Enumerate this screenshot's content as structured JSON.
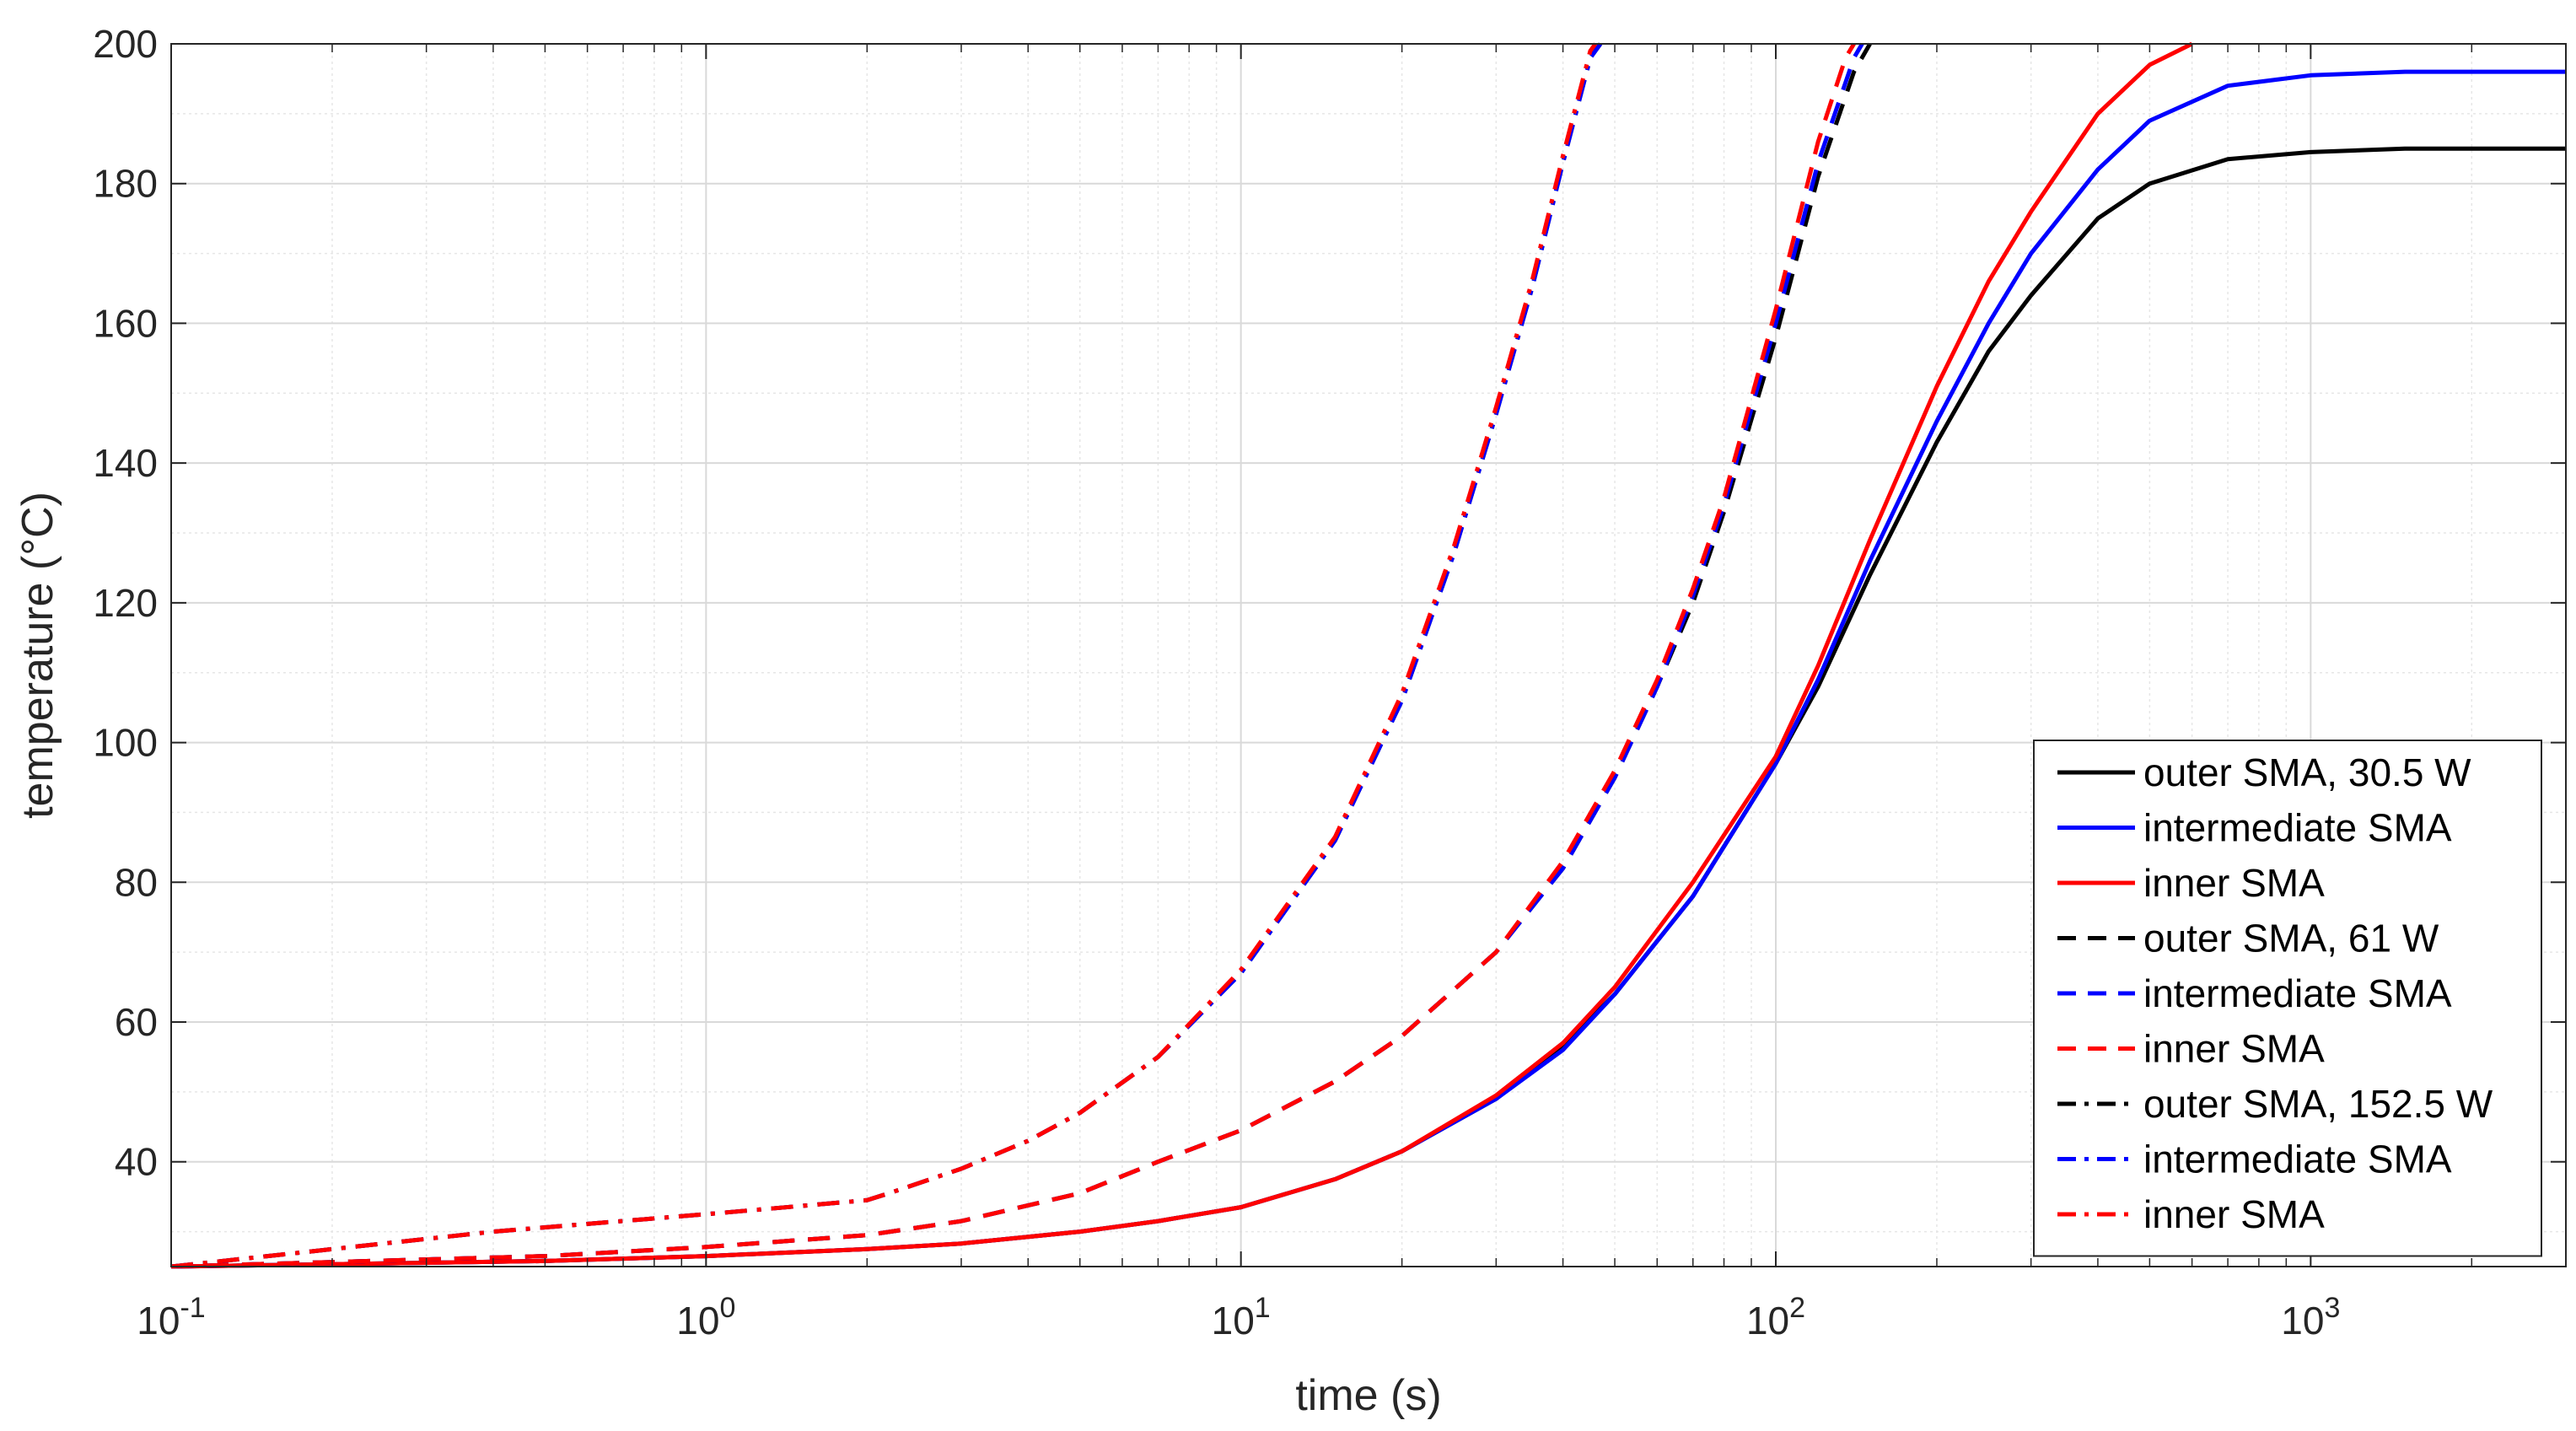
{
  "chart_data": {
    "type": "line",
    "title": "",
    "xlabel": "time (s)",
    "ylabel": "temperature (°C)",
    "xscale": "log",
    "xlim": [
      0.1,
      3000
    ],
    "ylim": [
      25,
      200
    ],
    "grid": true,
    "minor_grid": true,
    "legend_position": "bottom-right",
    "x_ticks": [
      {
        "value": 0.1,
        "base": "10",
        "exp": "-1"
      },
      {
        "value": 1,
        "base": "10",
        "exp": "0"
      },
      {
        "value": 10,
        "base": "10",
        "exp": "1"
      },
      {
        "value": 100,
        "base": "10",
        "exp": "2"
      },
      {
        "value": 1000,
        "base": "10",
        "exp": "3"
      }
    ],
    "y_ticks": [
      40,
      60,
      80,
      100,
      120,
      140,
      160,
      180,
      200
    ],
    "colors": {
      "outer": "#000000",
      "intermediate": "#0000ff",
      "inner": "#ff0000"
    },
    "series": [
      {
        "name": "outer SMA, 30.5 W",
        "color": "#000000",
        "style": "solid",
        "x": [
          0.1,
          0.5,
          1,
          2,
          3,
          5,
          7,
          10,
          15,
          20,
          30,
          40,
          50,
          70,
          100,
          120,
          150,
          200,
          250,
          300,
          400,
          500,
          700,
          1000,
          1500,
          2000,
          3000
        ],
        "y": [
          25,
          25.8,
          26.5,
          27.5,
          28.3,
          30,
          31.5,
          33.5,
          37.5,
          41.5,
          49,
          56.5,
          64,
          78,
          97,
          108,
          124,
          143,
          156,
          164,
          175,
          180,
          183.5,
          184.5,
          185,
          185,
          185
        ]
      },
      {
        "name": "intermediate SMA",
        "color": "#0000ff",
        "style": "solid",
        "x": [
          0.1,
          0.5,
          1,
          2,
          3,
          5,
          7,
          10,
          15,
          20,
          30,
          40,
          50,
          70,
          100,
          120,
          150,
          200,
          250,
          300,
          400,
          500,
          700,
          1000,
          1500,
          2000,
          3000
        ],
        "y": [
          25,
          25.8,
          26.5,
          27.5,
          28.3,
          30,
          31.5,
          33.5,
          37.5,
          41.5,
          49,
          56,
          64,
          78,
          97,
          109,
          126,
          146,
          160,
          170,
          182,
          189,
          194,
          195.5,
          196,
          196,
          196
        ]
      },
      {
        "name": "inner SMA",
        "color": "#ff0000",
        "style": "solid",
        "x": [
          0.1,
          0.5,
          1,
          2,
          3,
          5,
          7,
          10,
          15,
          20,
          30,
          40,
          50,
          70,
          100,
          120,
          150,
          200,
          250,
          300,
          400,
          500,
          600
        ],
        "y": [
          25,
          25.8,
          26.5,
          27.5,
          28.3,
          30,
          31.5,
          33.5,
          37.5,
          41.5,
          49.5,
          57,
          65,
          80,
          98,
          111,
          129,
          151,
          166,
          176,
          190,
          197,
          200
        ]
      },
      {
        "name": "outer SMA, 61 W",
        "color": "#000000",
        "style": "dashed",
        "x": [
          0.1,
          0.5,
          1,
          2,
          3,
          5,
          7,
          10,
          15,
          20,
          30,
          40,
          50,
          60,
          70,
          80,
          100,
          120,
          140,
          150
        ],
        "y": [
          25,
          26.5,
          27.8,
          29.5,
          31.5,
          35.5,
          40,
          44.5,
          51.5,
          58,
          70,
          82,
          95,
          108,
          120,
          133,
          158,
          181,
          196,
          200
        ]
      },
      {
        "name": "intermediate SMA",
        "color": "#0000ff",
        "style": "dashed",
        "x": [
          0.1,
          0.5,
          1,
          2,
          3,
          5,
          7,
          10,
          15,
          20,
          30,
          40,
          50,
          60,
          70,
          80,
          100,
          120,
          140,
          145
        ],
        "y": [
          25,
          26.5,
          27.8,
          29.5,
          31.5,
          35.5,
          40,
          44.5,
          51.5,
          58,
          70,
          82,
          95,
          108,
          121,
          134,
          160,
          183,
          198,
          200
        ]
      },
      {
        "name": "inner SMA",
        "color": "#ff0000",
        "style": "dashed",
        "x": [
          0.1,
          0.5,
          1,
          2,
          3,
          5,
          7,
          10,
          15,
          20,
          30,
          40,
          50,
          60,
          70,
          80,
          100,
          120,
          135,
          140
        ],
        "y": [
          25,
          26.5,
          27.8,
          29.5,
          31.5,
          35.5,
          40,
          44.5,
          51.5,
          58,
          70,
          83,
          96,
          109,
          122,
          135,
          162,
          186,
          198,
          200
        ]
      },
      {
        "name": "outer SMA, 152.5 W",
        "color": "#000000",
        "style": "dashdot",
        "x": [
          0.1,
          0.2,
          0.4,
          1,
          2,
          2.2,
          3,
          4,
          5,
          7,
          10,
          15,
          20,
          25,
          30,
          35,
          40,
          45,
          47
        ],
        "y": [
          25,
          27.5,
          30,
          32.5,
          34.5,
          35.5,
          39,
          43,
          47,
          55,
          67,
          86,
          106,
          127,
          147,
          165,
          183,
          198,
          200
        ]
      },
      {
        "name": "intermediate SMA",
        "color": "#0000ff",
        "style": "dashdot",
        "x": [
          0.1,
          0.2,
          0.4,
          1,
          2,
          2.2,
          3,
          4,
          5,
          7,
          10,
          15,
          20,
          25,
          30,
          35,
          40,
          45,
          47
        ],
        "y": [
          25,
          27.5,
          30,
          32.5,
          34.5,
          35.5,
          39,
          43,
          47,
          55,
          67,
          86,
          106,
          127,
          147,
          165,
          183,
          198,
          200
        ]
      },
      {
        "name": "inner SMA",
        "color": "#ff0000",
        "style": "dashdot",
        "x": [
          0.1,
          0.2,
          0.4,
          1,
          2,
          2.2,
          3,
          4,
          5,
          7,
          10,
          15,
          20,
          25,
          30,
          35,
          40,
          45,
          46
        ],
        "y": [
          25,
          27.5,
          30,
          32.5,
          34.5,
          35.5,
          39,
          43,
          47,
          55,
          67.5,
          86.5,
          107,
          128,
          148,
          166,
          184,
          199,
          200
        ]
      }
    ]
  }
}
